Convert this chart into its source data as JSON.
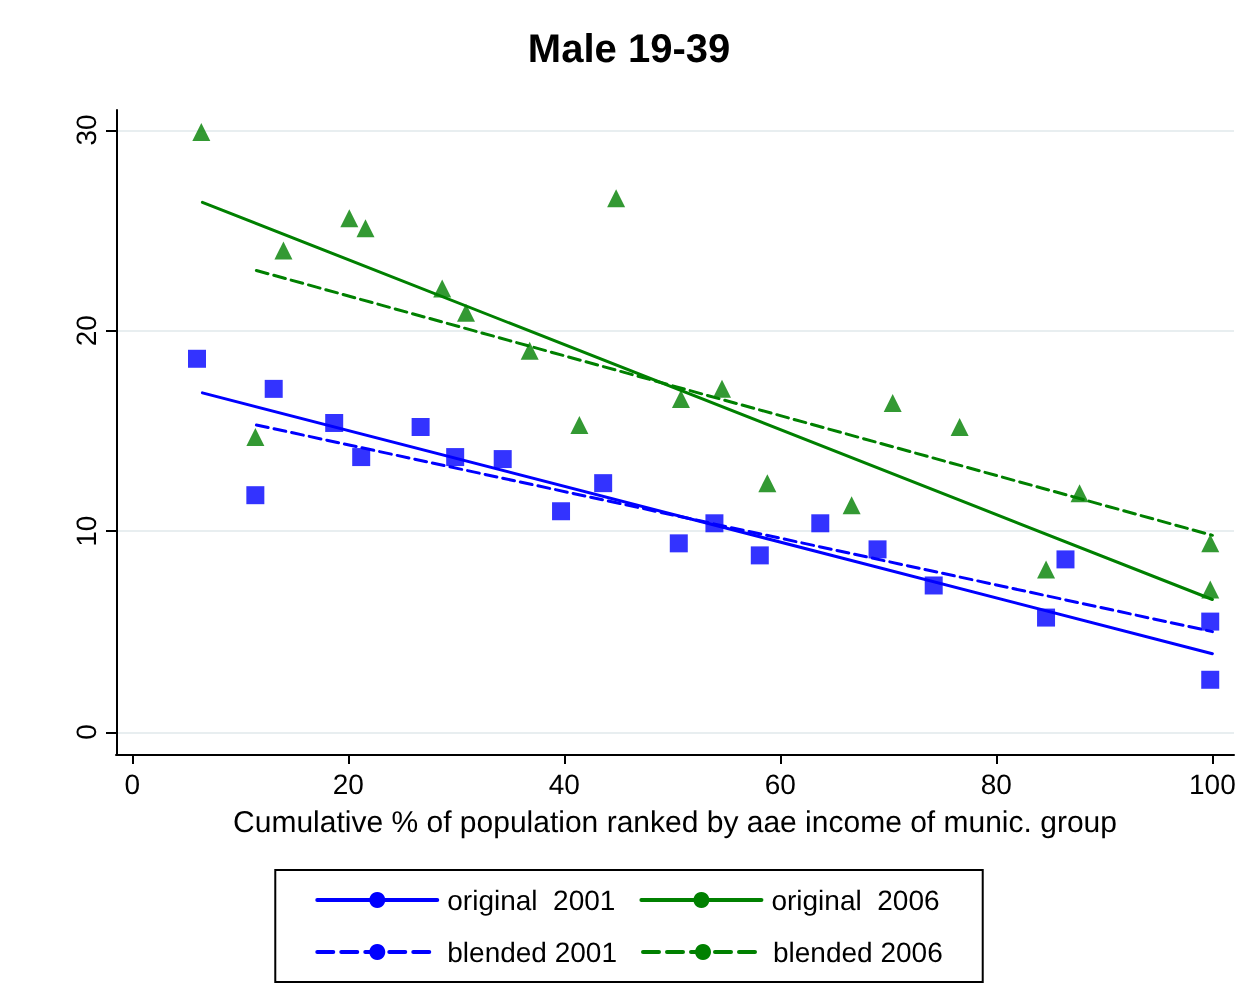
{
  "chart_data": {
    "type": "line",
    "title": "Male 19-39",
    "xlabel": "Cumulative % of population ranked by aae income of munic. group",
    "xlim": [
      -1.5,
      102
    ],
    "xticks": [
      0,
      20,
      40,
      60,
      80,
      100
    ],
    "ylim": [
      -1.1,
      31
    ],
    "yticks": [
      0,
      10,
      20,
      30
    ],
    "grid": "y",
    "legend": "bottom",
    "series": [
      {
        "type": "scatter",
        "marker": "square",
        "color": "#0000ff",
        "x": [
          6.0,
          13.1,
          21.2,
          29.9,
          39.7,
          50.6,
          58.1,
          69.0,
          84.6,
          99.8
        ],
        "values": [
          18.6,
          17.1,
          13.7,
          13.7,
          11.0,
          9.4,
          8.8,
          9.1,
          5.7,
          5.5
        ]
      },
      {
        "type": "scatter",
        "marker": "square",
        "color": "#0000ff",
        "x": [
          11.4,
          18.7,
          26.7,
          34.3,
          43.6,
          53.9,
          63.7,
          74.2,
          86.4,
          99.8
        ],
        "values": [
          11.8,
          15.4,
          15.2,
          13.6,
          12.4,
          10.4,
          10.4,
          7.3,
          8.6,
          2.6
        ]
      },
      {
        "type": "scatter",
        "marker": "triangle",
        "color": "#008000",
        "x": [
          6.4,
          14.0,
          21.6,
          30.9,
          41.4,
          50.8,
          58.8,
          70.4,
          84.6,
          99.8
        ],
        "values": [
          29.9,
          24.0,
          25.1,
          20.9,
          15.3,
          16.6,
          12.4,
          16.4,
          8.1,
          9.4
        ]
      },
      {
        "type": "scatter",
        "marker": "triangle",
        "color": "#008000",
        "x": [
          11.4,
          20.1,
          28.7,
          36.8,
          44.8,
          54.6,
          66.6,
          76.6,
          87.7,
          99.8
        ],
        "values": [
          14.7,
          25.6,
          22.1,
          19.0,
          26.6,
          17.1,
          11.3,
          15.2,
          11.9,
          7.1
        ]
      },
      {
        "name": "original  2001",
        "color": "#0000ff",
        "line_style": "solid",
        "x": [
          6.5,
          100
        ],
        "values": [
          16.9,
          3.9
        ]
      },
      {
        "name": "blended 2001",
        "color": "#0000ff",
        "line_style": "dashed",
        "x": [
          11.5,
          100
        ],
        "values": [
          15.3,
          5.0
        ]
      },
      {
        "name": "original  2006",
        "color": "#008000",
        "line_style": "solid",
        "x": [
          6.5,
          100
        ],
        "values": [
          26.4,
          6.6
        ]
      },
      {
        "name": "blended 2006",
        "color": "#008000",
        "line_style": "dashed",
        "x": [
          11.5,
          100
        ],
        "values": [
          23.0,
          9.8
        ]
      }
    ]
  }
}
